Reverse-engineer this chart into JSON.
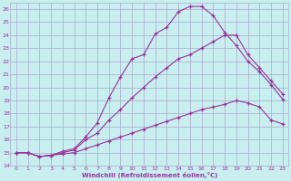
{
  "xlabel": "Windchill (Refroidissement éolien,°C)",
  "bg_color": "#c8eef0",
  "grid_color": "#aaaacc",
  "line_color": "#993399",
  "xlim": [
    -0.5,
    23.5
  ],
  "ylim": [
    14,
    26.5
  ],
  "xticks": [
    0,
    1,
    2,
    3,
    4,
    5,
    6,
    7,
    8,
    9,
    10,
    11,
    12,
    13,
    14,
    15,
    16,
    17,
    18,
    19,
    20,
    21,
    22,
    23
  ],
  "yticks": [
    14,
    15,
    16,
    17,
    18,
    19,
    20,
    21,
    22,
    23,
    24,
    25,
    26
  ],
  "curve_top_x": [
    0,
    1,
    2,
    3,
    4,
    5,
    6,
    7,
    8,
    9,
    10,
    11,
    12,
    13,
    14,
    15,
    16,
    17,
    18,
    19,
    20,
    21,
    22,
    23
  ],
  "curve_top_y": [
    15,
    15,
    14.7,
    14.8,
    15.1,
    15.3,
    16.2,
    17.3,
    19.2,
    20.8,
    22.2,
    22.5,
    24.1,
    24.6,
    25.8,
    26.2,
    26.2,
    25.5,
    24.2,
    23.2,
    22.0,
    21.2,
    20.2,
    19.1
  ],
  "curve_mid_x": [
    0,
    1,
    2,
    3,
    4,
    5,
    6,
    7,
    8,
    9,
    10,
    11,
    12,
    13,
    14,
    15,
    16,
    17,
    18,
    19,
    20,
    21,
    22,
    23
  ],
  "curve_mid_y": [
    15,
    15,
    14.7,
    14.8,
    15.0,
    15.2,
    16.0,
    16.5,
    17.5,
    18.3,
    19.2,
    20.0,
    20.8,
    21.5,
    22.2,
    22.5,
    23.0,
    23.5,
    24.0,
    24.0,
    22.5,
    21.5,
    20.5,
    19.5
  ],
  "curve_bot_x": [
    0,
    1,
    2,
    3,
    4,
    5,
    6,
    7,
    8,
    9,
    10,
    11,
    12,
    13,
    14,
    15,
    16,
    17,
    18,
    19,
    20,
    21,
    22,
    23
  ],
  "curve_bot_y": [
    15,
    15,
    14.7,
    14.8,
    14.9,
    15.0,
    15.3,
    15.6,
    15.9,
    16.2,
    16.5,
    16.8,
    17.1,
    17.4,
    17.7,
    18.0,
    18.3,
    18.5,
    18.7,
    19.0,
    18.8,
    18.5,
    17.5,
    17.2
  ]
}
